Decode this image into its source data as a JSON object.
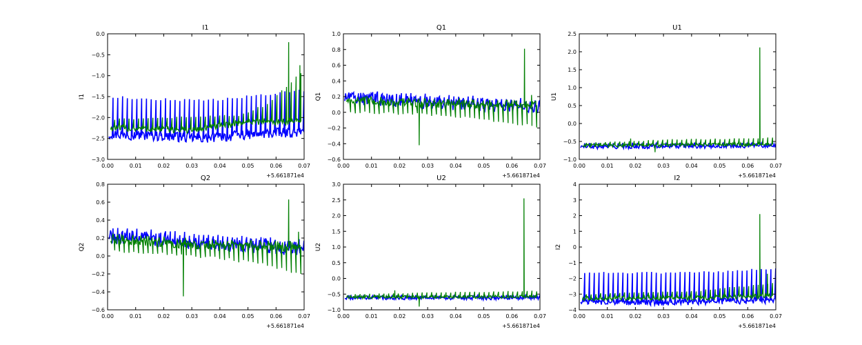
{
  "figure": {
    "offset_label": "+5.661871e4"
  },
  "colors": {
    "series_blue": "#0000ff",
    "series_green": "#007f00",
    "axes": "#000000",
    "background": "#ffffff"
  },
  "chart_data": [
    {
      "type": "line",
      "title": "I1",
      "xlabel": "",
      "ylabel": "I1",
      "xlim": [
        0.0,
        0.07
      ],
      "ylim": [
        -3.0,
        0.0
      ],
      "xticks": [
        0.0,
        0.01,
        0.02,
        0.03,
        0.04,
        0.05,
        0.06,
        0.07
      ],
      "xtick_labels": [
        "0.00",
        "0.01",
        "0.02",
        "0.03",
        "0.04",
        "0.05",
        "0.06",
        "0.07"
      ],
      "yticks": [
        -3.0,
        -2.5,
        -2.0,
        -1.5,
        -1.0,
        -0.5,
        0.0
      ],
      "ytick_labels": [
        "−3.0",
        "−2.5",
        "−2.0",
        "−1.5",
        "−1.0",
        "−0.5",
        "0.0"
      ],
      "series": [
        {
          "name": "blue",
          "color": "#0000ff",
          "base": [
            [
              0.0,
              -2.4
            ],
            [
              0.02,
              -2.45
            ],
            [
              0.035,
              -2.5
            ],
            [
              0.05,
              -2.4
            ],
            [
              0.068,
              -2.35
            ]
          ],
          "band": 0.12,
          "spike_every": 0.0017,
          "spike_to": [
            [
              0.0,
              -1.5
            ],
            [
              0.03,
              -1.6
            ],
            [
              0.05,
              -1.5
            ],
            [
              0.068,
              -1.35
            ]
          ]
        },
        {
          "name": "green",
          "color": "#007f00",
          "base": [
            [
              0.0,
              -2.25
            ],
            [
              0.03,
              -2.3
            ],
            [
              0.05,
              -2.1
            ],
            [
              0.068,
              -2.1
            ]
          ],
          "band": 0.08,
          "spike_every": 0.0017,
          "spike_to": [
            [
              0.0,
              -2.05
            ],
            [
              0.045,
              -1.95
            ],
            [
              0.055,
              -1.7
            ],
            [
              0.068,
              -0.9
            ]
          ],
          "peaks": [
            [
              0.0645,
              -0.2
            ],
            [
              0.0685,
              -0.75
            ]
          ]
        }
      ]
    },
    {
      "type": "line",
      "title": "Q1",
      "xlabel": "",
      "ylabel": "Q1",
      "xlim": [
        0.0,
        0.07
      ],
      "ylim": [
        -0.6,
        1.0
      ],
      "xticks": [
        0.0,
        0.01,
        0.02,
        0.03,
        0.04,
        0.05,
        0.06,
        0.07
      ],
      "xtick_labels": [
        "0.00",
        "0.01",
        "0.02",
        "0.03",
        "0.04",
        "0.05",
        "0.06",
        "0.07"
      ],
      "yticks": [
        -0.6,
        -0.4,
        -0.2,
        0.0,
        0.2,
        0.4,
        0.6,
        0.8,
        1.0
      ],
      "ytick_labels": [
        "−0.6",
        "−0.4",
        "−0.2",
        "0.0",
        "0.2",
        "0.4",
        "0.6",
        "0.8",
        "1.0"
      ],
      "series": [
        {
          "name": "blue",
          "color": "#0000ff",
          "base": [
            [
              0.0,
              0.18
            ],
            [
              0.02,
              0.14
            ],
            [
              0.04,
              0.1
            ],
            [
              0.068,
              0.07
            ]
          ],
          "band": 0.08,
          "spike_every": 0.0017,
          "spike_to": [
            [
              0.0,
              0.26
            ],
            [
              0.068,
              0.15
            ]
          ]
        },
        {
          "name": "green",
          "color": "#007f00",
          "base": [
            [
              0.0,
              0.16
            ],
            [
              0.03,
              0.12
            ],
            [
              0.068,
              0.09
            ]
          ],
          "band": 0.06,
          "spike_every": 0.0017,
          "spike_to": [
            [
              0.0,
              0.0
            ],
            [
              0.03,
              -0.03
            ],
            [
              0.05,
              -0.1
            ],
            [
              0.068,
              -0.18
            ]
          ],
          "peaks": [
            [
              0.027,
              -0.42
            ],
            [
              0.0645,
              0.81
            ],
            [
              0.067,
              0.22
            ]
          ]
        }
      ]
    },
    {
      "type": "line",
      "title": "U1",
      "xlabel": "",
      "ylabel": "U1",
      "xlim": [
        0.0,
        0.07
      ],
      "ylim": [
        -1.0,
        2.5
      ],
      "xticks": [
        0.0,
        0.01,
        0.02,
        0.03,
        0.04,
        0.05,
        0.06,
        0.07
      ],
      "xtick_labels": [
        "0.00",
        "0.01",
        "0.02",
        "0.03",
        "0.04",
        "0.05",
        "0.06",
        "0.07"
      ],
      "yticks": [
        -1.0,
        -0.5,
        0.0,
        0.5,
        1.0,
        1.5,
        2.0,
        2.5
      ],
      "ytick_labels": [
        "−1.0",
        "−0.5",
        "0.0",
        "0.5",
        "1.0",
        "1.5",
        "2.0",
        "2.5"
      ],
      "series": [
        {
          "name": "blue",
          "color": "#0000ff",
          "base": [
            [
              0.0,
              -0.65
            ],
            [
              0.068,
              -0.62
            ]
          ],
          "band": 0.06,
          "spike_every": 0.0017,
          "spike_to": [
            [
              0.0,
              -0.55
            ],
            [
              0.068,
              -0.55
            ]
          ]
        },
        {
          "name": "green",
          "color": "#007f00",
          "base": [
            [
              0.0,
              -0.62
            ],
            [
              0.068,
              -0.58
            ]
          ],
          "band": 0.05,
          "spike_every": 0.0017,
          "spike_to": [
            [
              0.0,
              -0.55
            ],
            [
              0.03,
              -0.45
            ],
            [
              0.068,
              -0.4
            ]
          ],
          "peaks": [
            [
              0.0643,
              2.12
            ],
            [
              0.0183,
              -0.42
            ],
            [
              0.027,
              -0.8
            ]
          ]
        }
      ]
    },
    {
      "type": "line",
      "title": "Q2",
      "xlabel": "",
      "ylabel": "Q2",
      "xlim": [
        0.0,
        0.07
      ],
      "ylim": [
        -0.6,
        0.8
      ],
      "xticks": [
        0.0,
        0.01,
        0.02,
        0.03,
        0.04,
        0.05,
        0.06,
        0.07
      ],
      "xtick_labels": [
        "0.00",
        "0.01",
        "0.02",
        "0.03",
        "0.04",
        "0.05",
        "0.06",
        "0.07"
      ],
      "yticks": [
        -0.6,
        -0.4,
        -0.2,
        0.0,
        0.2,
        0.4,
        0.6,
        0.8
      ],
      "ytick_labels": [
        "−0.6",
        "−0.4",
        "−0.2",
        "0.0",
        "0.2",
        "0.4",
        "0.6",
        "0.8"
      ],
      "series": [
        {
          "name": "blue",
          "color": "#0000ff",
          "base": [
            [
              0.0,
              0.22
            ],
            [
              0.02,
              0.17
            ],
            [
              0.04,
              0.13
            ],
            [
              0.068,
              0.08
            ]
          ],
          "band": 0.08,
          "spike_every": 0.0017,
          "spike_to": [
            [
              0.0,
              0.3
            ],
            [
              0.068,
              0.17
            ]
          ]
        },
        {
          "name": "green",
          "color": "#007f00",
          "base": [
            [
              0.0,
              0.19
            ],
            [
              0.03,
              0.14
            ],
            [
              0.068,
              0.1
            ]
          ],
          "band": 0.06,
          "spike_every": 0.0017,
          "spike_to": [
            [
              0.0,
              0.05
            ],
            [
              0.03,
              0.0
            ],
            [
              0.05,
              -0.07
            ],
            [
              0.068,
              -0.2
            ]
          ],
          "peaks": [
            [
              0.027,
              -0.45
            ],
            [
              0.0645,
              0.63
            ],
            [
              0.068,
              0.27
            ]
          ]
        }
      ]
    },
    {
      "type": "line",
      "title": "U2",
      "xlabel": "",
      "ylabel": "U2",
      "xlim": [
        0.0,
        0.07
      ],
      "ylim": [
        -1.0,
        3.0
      ],
      "xticks": [
        0.0,
        0.01,
        0.02,
        0.03,
        0.04,
        0.05,
        0.06,
        0.07
      ],
      "xtick_labels": [
        "0.00",
        "0.01",
        "0.02",
        "0.03",
        "0.04",
        "0.05",
        "0.06",
        "0.07"
      ],
      "yticks": [
        -1.0,
        -0.5,
        0.0,
        0.5,
        1.0,
        1.5,
        2.0,
        2.5,
        3.0
      ],
      "ytick_labels": [
        "−1.0",
        "−0.5",
        "0.0",
        "0.5",
        "1.0",
        "1.5",
        "2.0",
        "2.5",
        "3.0"
      ],
      "series": [
        {
          "name": "blue",
          "color": "#0000ff",
          "base": [
            [
              0.0,
              -0.62
            ],
            [
              0.068,
              -0.62
            ]
          ],
          "band": 0.06,
          "spike_every": 0.0017,
          "spike_to": [
            [
              0.0,
              -0.55
            ],
            [
              0.068,
              -0.55
            ]
          ]
        },
        {
          "name": "green",
          "color": "#007f00",
          "base": [
            [
              0.0,
              -0.6
            ],
            [
              0.068,
              -0.58
            ]
          ],
          "band": 0.05,
          "spike_every": 0.0017,
          "spike_to": [
            [
              0.0,
              -0.52
            ],
            [
              0.03,
              -0.45
            ],
            [
              0.068,
              -0.4
            ]
          ],
          "peaks": [
            [
              0.0643,
              2.55
            ],
            [
              0.0183,
              -0.38
            ],
            [
              0.027,
              -0.9
            ]
          ]
        }
      ]
    },
    {
      "type": "line",
      "title": "I2",
      "xlabel": "",
      "ylabel": "I2",
      "xlim": [
        0.0,
        0.07
      ],
      "ylim": [
        -4.0,
        4.0
      ],
      "xticks": [
        0.0,
        0.01,
        0.02,
        0.03,
        0.04,
        0.05,
        0.06,
        0.07
      ],
      "xtick_labels": [
        "0.00",
        "0.01",
        "0.02",
        "0.03",
        "0.04",
        "0.05",
        "0.06",
        "0.07"
      ],
      "yticks": [
        -4,
        -3,
        -2,
        -1,
        0,
        1,
        2,
        3,
        4
      ],
      "ytick_labels": [
        "−4",
        "−3",
        "−2",
        "−1",
        "0",
        "1",
        "2",
        "3",
        "4"
      ],
      "series": [
        {
          "name": "blue",
          "color": "#0000ff",
          "base": [
            [
              0.0,
              -3.45
            ],
            [
              0.03,
              -3.55
            ],
            [
              0.05,
              -3.45
            ],
            [
              0.068,
              -3.4
            ]
          ],
          "band": 0.2,
          "spike_every": 0.0017,
          "spike_to": [
            [
              0.0,
              -1.6
            ],
            [
              0.03,
              -1.65
            ],
            [
              0.05,
              -1.55
            ],
            [
              0.068,
              -1.35
            ]
          ]
        },
        {
          "name": "green",
          "color": "#007f00",
          "base": [
            [
              0.0,
              -3.3
            ],
            [
              0.04,
              -3.25
            ],
            [
              0.068,
              -3.1
            ]
          ],
          "band": 0.15,
          "spike_every": 0.0017,
          "spike_to": [
            [
              0.0,
              -3.0
            ],
            [
              0.04,
              -2.8
            ],
            [
              0.068,
              -2.3
            ]
          ],
          "peaks": [
            [
              0.0643,
              2.1
            ],
            [
              0.067,
              -1.7
            ]
          ]
        }
      ]
    }
  ]
}
